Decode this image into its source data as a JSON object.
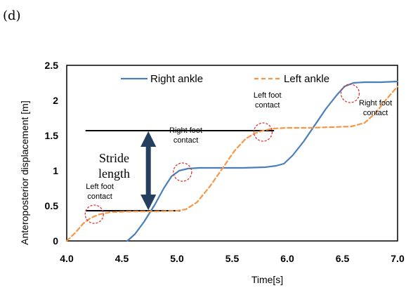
{
  "panel_label": "(d)",
  "chart_data": {
    "type": "line",
    "title": "",
    "xlabel": "Time[s]",
    "ylabel": "Anteroposterior displacement [m]",
    "xlim": [
      4.0,
      7.0
    ],
    "ylim": [
      0,
      2.5
    ],
    "xticks": [
      4.0,
      4.5,
      5.0,
      5.5,
      6.0,
      6.5,
      7.0
    ],
    "xtick_labels": [
      "4.0",
      "4.5",
      "5.0",
      "5.5",
      "6.0",
      "6.5",
      "7.0"
    ],
    "yticks": [
      0,
      0.5,
      1,
      1.5,
      2,
      2.5
    ],
    "ytick_labels": [
      "0",
      "0.5",
      "1",
      "1.5",
      "2",
      "2.5"
    ],
    "grid": false,
    "legend": "top",
    "series": [
      {
        "name": "Right ankle",
        "color": "#4a7ebb",
        "dash": "solid",
        "x": [
          4.55,
          4.62,
          4.7,
          4.8,
          4.88,
          4.95,
          5.02,
          5.1,
          5.2,
          5.4,
          5.6,
          5.8,
          5.9,
          5.97,
          6.05,
          6.15,
          6.25,
          6.35,
          6.45,
          6.52,
          6.6,
          6.7,
          6.85,
          7.0
        ],
        "y": [
          0.0,
          0.1,
          0.27,
          0.52,
          0.75,
          0.92,
          1.0,
          1.03,
          1.04,
          1.04,
          1.04,
          1.05,
          1.07,
          1.1,
          1.22,
          1.42,
          1.65,
          1.88,
          2.08,
          2.2,
          2.25,
          2.26,
          2.26,
          2.27
        ]
      },
      {
        "name": "Left ankle",
        "color": "#f79646",
        "dash": "dashed",
        "x": [
          4.0,
          4.08,
          4.15,
          4.22,
          4.3,
          4.4,
          4.6,
          4.8,
          5.0,
          5.08,
          5.18,
          5.3,
          5.42,
          5.52,
          5.62,
          5.7,
          5.78,
          5.87,
          6.0,
          6.2,
          6.4,
          6.58,
          6.7,
          6.8,
          6.9,
          7.0
        ],
        "y": [
          0.0,
          0.12,
          0.25,
          0.33,
          0.38,
          0.41,
          0.42,
          0.42,
          0.43,
          0.45,
          0.55,
          0.78,
          1.05,
          1.28,
          1.45,
          1.53,
          1.57,
          1.6,
          1.61,
          1.61,
          1.62,
          1.63,
          1.68,
          1.82,
          2.02,
          2.2
        ]
      }
    ],
    "annotations": [
      {
        "text": [
          "Left foot",
          "contact"
        ],
        "x": 4.25,
        "y": 0.38,
        "label_x": 4.3,
        "label_y": 0.67
      },
      {
        "text": [
          "Right foot",
          "contact"
        ],
        "x": 5.05,
        "y": 0.98,
        "label_x": 5.08,
        "label_y": 1.47
      },
      {
        "text": [
          "Left foot",
          "contact"
        ],
        "x": 5.78,
        "y": 1.55,
        "label_x": 5.82,
        "label_y": 1.97
      },
      {
        "text": [
          "Right foot",
          "contact"
        ],
        "x": 6.57,
        "y": 2.1,
        "label_x": 6.8,
        "label_y": 1.86
      }
    ],
    "stride": {
      "label": [
        "Stride",
        "length"
      ],
      "line_low": {
        "y": 0.43,
        "x0": 4.17,
        "x1": 5.03
      },
      "line_high": {
        "y": 1.57,
        "x0": 4.17,
        "x1": 5.88
      },
      "arrow_x": 4.74,
      "label_x": 4.43,
      "label_y": 1.0
    }
  },
  "colors": {
    "annotation_circle": "#e03030",
    "stride_arrow": "#243f60",
    "reference_lines": "#000000"
  }
}
